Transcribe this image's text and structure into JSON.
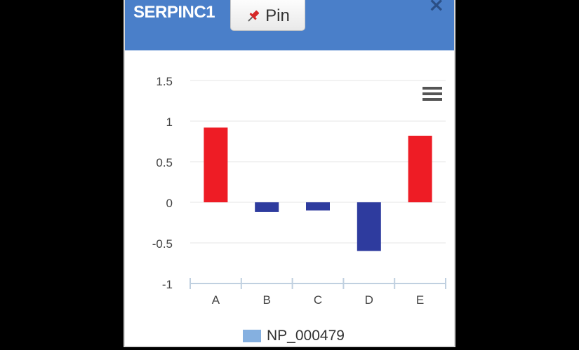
{
  "header": {
    "title": "SERPINC1",
    "pin_label": "Pin",
    "close_label": "×"
  },
  "colors": {
    "header_bg": "#4a7fc9",
    "positive_bar": "#ee1c25",
    "negative_bar": "#2e3b9e",
    "legend_swatch": "#85b0e0"
  },
  "icons": {
    "pin": "pushpin-icon",
    "menu": "hamburger-menu-icon",
    "close": "close-icon"
  },
  "chart_data": {
    "type": "bar",
    "categories": [
      "A",
      "B",
      "C",
      "D",
      "E"
    ],
    "series": [
      {
        "name": "NP_000479",
        "values": [
          0.92,
          -0.12,
          -0.1,
          -0.6,
          0.82
        ]
      }
    ],
    "ylim": [
      -1,
      1.5
    ],
    "yticks": [
      "1.5",
      "1",
      "0.5",
      "0",
      "-0.5",
      "-1"
    ],
    "ytick_values": [
      1.5,
      1,
      0.5,
      0,
      -0.5,
      -1
    ],
    "grid": true,
    "legend_position": "bottom"
  }
}
